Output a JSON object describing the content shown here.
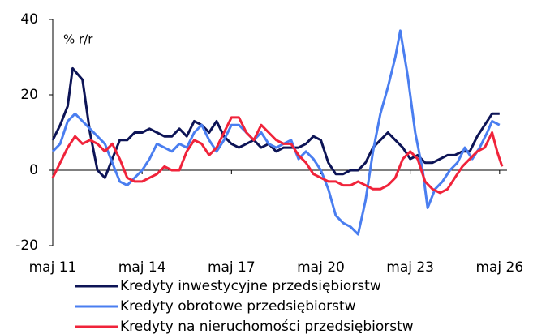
{
  "chart_data": {
    "type": "line",
    "annotation": "% r/r",
    "xlim": [
      0,
      183
    ],
    "xticks": [
      {
        "value": 0,
        "label": "maj 11"
      },
      {
        "value": 36,
        "label": "maj 14"
      },
      {
        "value": 72,
        "label": "maj 17"
      },
      {
        "value": 108,
        "label": "maj 20"
      },
      {
        "value": 144,
        "label": "maj 23"
      },
      {
        "value": 180,
        "label": "maj 26"
      }
    ],
    "ylim": [
      -20,
      40
    ],
    "yticks": [
      -20,
      0,
      20,
      40
    ],
    "grid": false,
    "legend": "bottom",
    "series": [
      {
        "name": "Kredyty inwestycyjne przedsiębiorstw",
        "color": "#0d1456",
        "x": [
          0,
          3,
          6,
          8,
          12,
          15,
          18,
          21,
          24,
          27,
          30,
          33,
          36,
          39,
          42,
          45,
          48,
          51,
          54,
          57,
          60,
          63,
          66,
          69,
          72,
          75,
          78,
          81,
          84,
          87,
          90,
          93,
          96,
          99,
          102,
          105,
          108,
          111,
          114,
          117,
          120,
          123,
          126,
          129,
          132,
          135,
          138,
          141,
          144,
          147,
          150,
          153,
          156,
          159,
          162,
          165,
          168,
          171,
          174,
          177,
          180
        ],
        "values": [
          8,
          12,
          17,
          27,
          24,
          10,
          0,
          -2,
          3,
          8,
          8,
          10,
          10,
          11,
          10,
          9,
          9,
          11,
          9,
          13,
          12,
          10,
          13,
          9,
          7,
          6,
          7,
          8,
          6,
          7,
          5,
          6,
          6,
          6,
          7,
          9,
          8,
          2,
          -1,
          -1,
          0,
          0,
          2,
          6,
          8,
          10,
          8,
          6,
          3,
          4,
          2,
          2,
          3,
          4,
          4,
          5,
          5,
          9,
          12,
          15,
          15
        ]
      },
      {
        "name": "Kredyty obrotowe przedsiębiorstw",
        "color": "#4a7ef0",
        "x": [
          0,
          3,
          6,
          9,
          12,
          15,
          18,
          21,
          24,
          27,
          30,
          33,
          36,
          39,
          42,
          45,
          48,
          51,
          54,
          57,
          60,
          63,
          66,
          69,
          72,
          75,
          78,
          81,
          84,
          87,
          90,
          93,
          96,
          99,
          102,
          105,
          108,
          111,
          114,
          117,
          120,
          123,
          126,
          129,
          132,
          135,
          138,
          140,
          143,
          146,
          149,
          151,
          154,
          157,
          160,
          163,
          166,
          169,
          172,
          175,
          177,
          180
        ],
        "values": [
          5,
          7,
          13,
          15,
          13,
          11,
          9,
          7,
          2,
          -3,
          -4,
          -2,
          0,
          3,
          7,
          6,
          5,
          7,
          6,
          10,
          12,
          8,
          5,
          8,
          12,
          12,
          10,
          8,
          10,
          7,
          6,
          7,
          8,
          3,
          5,
          3,
          0,
          -5,
          -12,
          -14,
          -15,
          -17,
          -8,
          5,
          15,
          22,
          30,
          37,
          25,
          10,
          0,
          -10,
          -5,
          -3,
          0,
          2,
          6,
          3,
          6,
          10,
          13,
          12
        ]
      },
      {
        "name": "Kredyty na nieruchomości przedsiębiorstw",
        "color": "#f0233a",
        "x": [
          0,
          3,
          6,
          9,
          12,
          15,
          18,
          21,
          24,
          27,
          30,
          33,
          36,
          39,
          42,
          45,
          48,
          51,
          54,
          57,
          60,
          63,
          66,
          69,
          72,
          75,
          78,
          81,
          84,
          87,
          90,
          93,
          96,
          99,
          102,
          105,
          108,
          111,
          114,
          117,
          120,
          123,
          126,
          129,
          132,
          135,
          138,
          141,
          144,
          147,
          150,
          153,
          156,
          159,
          162,
          165,
          168,
          171,
          174,
          177,
          179,
          181
        ],
        "values": [
          -2,
          2,
          6,
          9,
          7,
          8,
          7,
          5,
          7,
          3,
          -2,
          -3,
          -3,
          -2,
          -1,
          1,
          0,
          0,
          5,
          8,
          7,
          4,
          6,
          10,
          14,
          14,
          10,
          8,
          12,
          10,
          8,
          7,
          7,
          4,
          2,
          -1,
          -2,
          -3,
          -3,
          -4,
          -4,
          -3,
          -4,
          -5,
          -5,
          -4,
          -2,
          3,
          5,
          3,
          -3,
          -5,
          -6,
          -5,
          -2,
          1,
          3,
          5,
          6,
          10,
          5,
          1
        ]
      }
    ]
  }
}
